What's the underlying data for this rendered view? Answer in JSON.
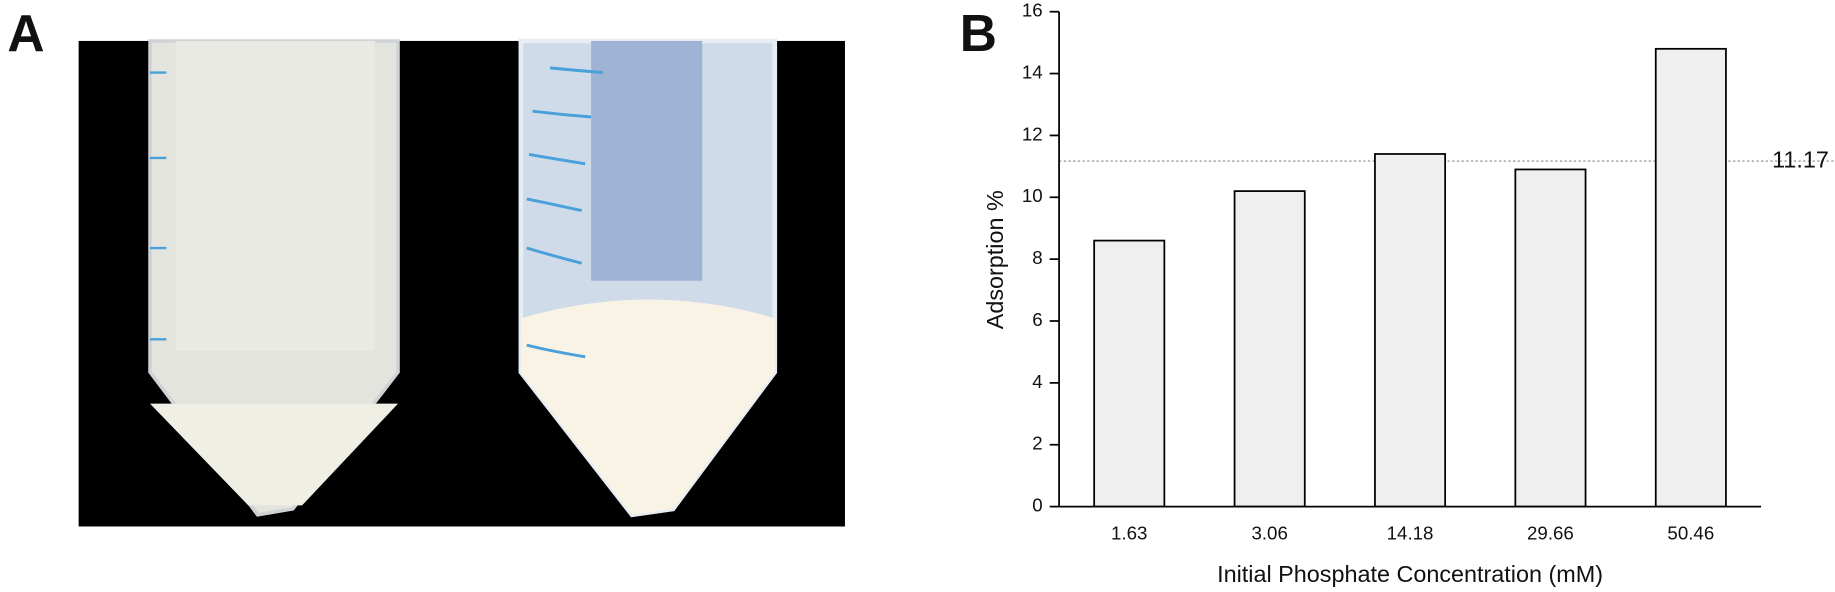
{
  "panels": [
    "A",
    "B"
  ],
  "chart_data": {
    "type": "bar",
    "x_label": "Initial Phosphate Concentration (mM)",
    "y_label": "Adsorption %",
    "categories": [
      "1.63",
      "3.06",
      "14.18",
      "29.66",
      "50.46"
    ],
    "values": [
      8.6,
      10.2,
      11.4,
      10.9,
      14.8
    ],
    "color": "#efefef",
    "ylim": [
      0,
      16
    ],
    "yticks": [
      0,
      2,
      4,
      6,
      8,
      10,
      12,
      14,
      16
    ],
    "reference_value": 11.17
  }
}
